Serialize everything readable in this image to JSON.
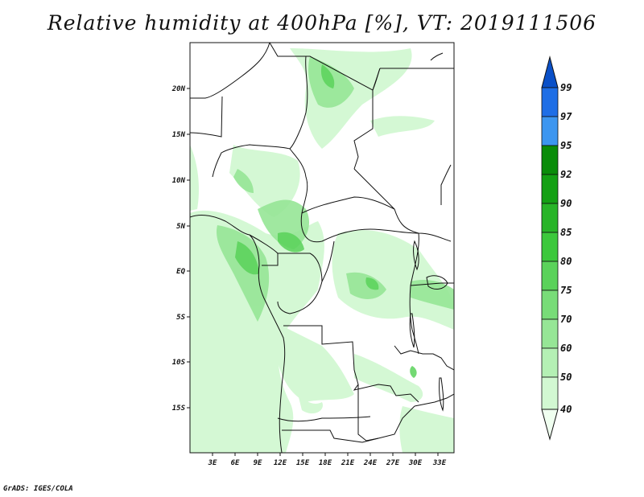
{
  "title": "Relative humidity at 400hPa [%], VT: 2019111506",
  "credit": "GrADS: IGES/COLA",
  "map": {
    "lon_range": [
      0,
      35
    ],
    "lat_range": [
      -20,
      25
    ],
    "x_ticks": [
      "3E",
      "6E",
      "9E",
      "12E",
      "15E",
      "18E",
      "21E",
      "24E",
      "27E",
      "30E",
      "33E"
    ],
    "y_ticks": [
      "20N",
      "15N",
      "10N",
      "5N",
      "EQ",
      "5S",
      "10S",
      "15S"
    ]
  },
  "colorbar": {
    "levels": [
      "40",
      "50",
      "60",
      "70",
      "75",
      "80",
      "85",
      "90",
      "92",
      "95",
      "97",
      "99"
    ],
    "colors": [
      "#f0fff0",
      "#d2f8d2",
      "#b4f0b4",
      "#96e696",
      "#78dc78",
      "#5ad25a",
      "#3cc83c",
      "#28b428",
      "#14a014",
      "#0a8c0a",
      "#3c96f0",
      "#1e6ee6",
      "#0a50c8"
    ]
  },
  "chart_data": {
    "type": "heatmap",
    "title": "Relative humidity at 400hPa [%], VT: 2019111506",
    "variable": "Relative humidity",
    "units": "%",
    "level": "400hPa",
    "valid_time": "2019111506",
    "x_range": [
      0,
      35
    ],
    "y_range": [
      -20,
      25
    ],
    "contour_levels": [
      40,
      50,
      60,
      70,
      75,
      80,
      85,
      90,
      92,
      95,
      97,
      99
    ]
  }
}
